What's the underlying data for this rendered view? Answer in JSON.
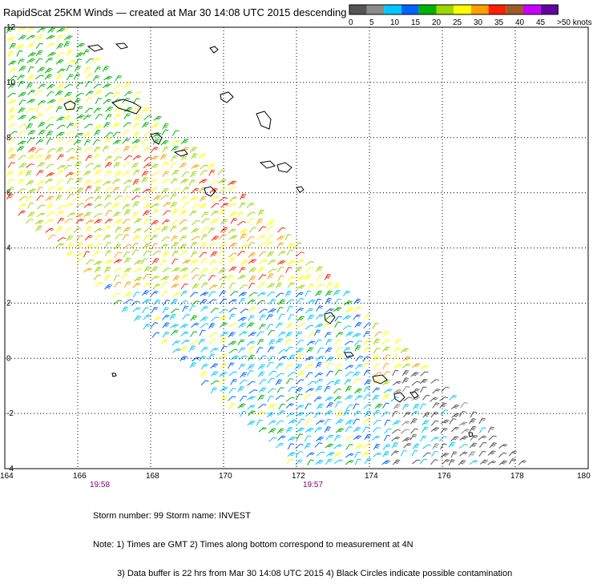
{
  "title": "RapidScat 25KM Winds — created at Mar 30 14:08 UTC 2015 descending",
  "legend": {
    "ticks": [
      "0",
      "5",
      "10",
      "15",
      "20",
      "25",
      "30",
      "35",
      "40",
      "45",
      ">50 knots"
    ],
    "colors": [
      "#555555",
      "#8a8a8a",
      "#00c8ff",
      "#0064ff",
      "#00b400",
      "#9cd800",
      "#ffff00",
      "#ffa000",
      "#ff2000",
      "#a05a28",
      "#c800ff",
      "#6400a0"
    ]
  },
  "map": {
    "lat_labels": [
      "12",
      "10",
      "8",
      "6",
      "4",
      "2",
      "0",
      "-2",
      "-4"
    ],
    "lon_labels": [
      "164",
      "166",
      "168",
      "170",
      "172",
      "174",
      "176",
      "178",
      "180"
    ],
    "time_labels": [
      "19:58",
      "19:57"
    ],
    "lat_range": [
      -4,
      12
    ],
    "lon_range": [
      164,
      180
    ],
    "grid": true
  },
  "footer": {
    "storm_line": "Storm number: 99     Storm name: INVEST",
    "note1": "Note: 1) Times are GMT  2) Times along bottom correspond to measurement at 4N",
    "note2": "3) Data buffer is 22 hrs from Mar 30 14:08 UTC 2015   4) Black Circles indicate possible contamination"
  }
}
